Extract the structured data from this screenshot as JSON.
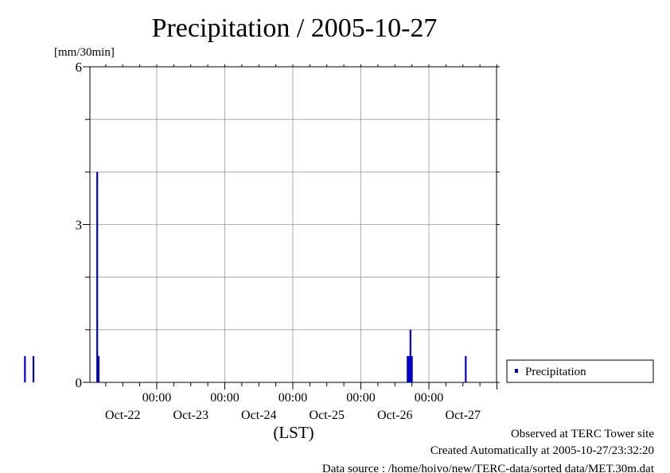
{
  "chart_data": {
    "type": "bar",
    "title": "Precipitation / 2005-10-27",
    "y_unit": "[mm/30min]",
    "xlabel": "(LST)",
    "ylim": [
      0,
      6
    ],
    "y_ticks": [
      0,
      3,
      6
    ],
    "x_range_hours": [
      -48,
      96
    ],
    "x_tick_times": [
      "00:00",
      "00:00",
      "00:00",
      "00:00",
      "00:00"
    ],
    "x_tick_dates": [
      "Oct-22",
      "Oct-23",
      "Oct-24",
      "Oct-25",
      "Oct-26",
      "Oct-27"
    ],
    "series": [
      {
        "name": "Precipitation",
        "color": "#0000cc",
        "points": [
          {
            "t": 1.5,
            "v": 0.5
          },
          {
            "t": 4.5,
            "v": 0.5
          },
          {
            "t": 27.0,
            "v": 4.0
          },
          {
            "t": 27.5,
            "v": 0.5
          },
          {
            "t": 136.5,
            "v": 0.5
          },
          {
            "t": 137.0,
            "v": 0.5
          },
          {
            "t": 137.5,
            "v": 1.0
          },
          {
            "t": 138.0,
            "v": 0.5
          },
          {
            "t": 157.0,
            "v": 0.5
          }
        ]
      }
    ],
    "grid": true,
    "legend_position": "right"
  },
  "footer": {
    "observed": "Observed at TERC Tower site",
    "created": "Created Automatically at 2005-10-27/23:32:20",
    "source": "Data source : /home/hoivo/new/TERC-data/sorted  data/MET.30m.dat"
  }
}
